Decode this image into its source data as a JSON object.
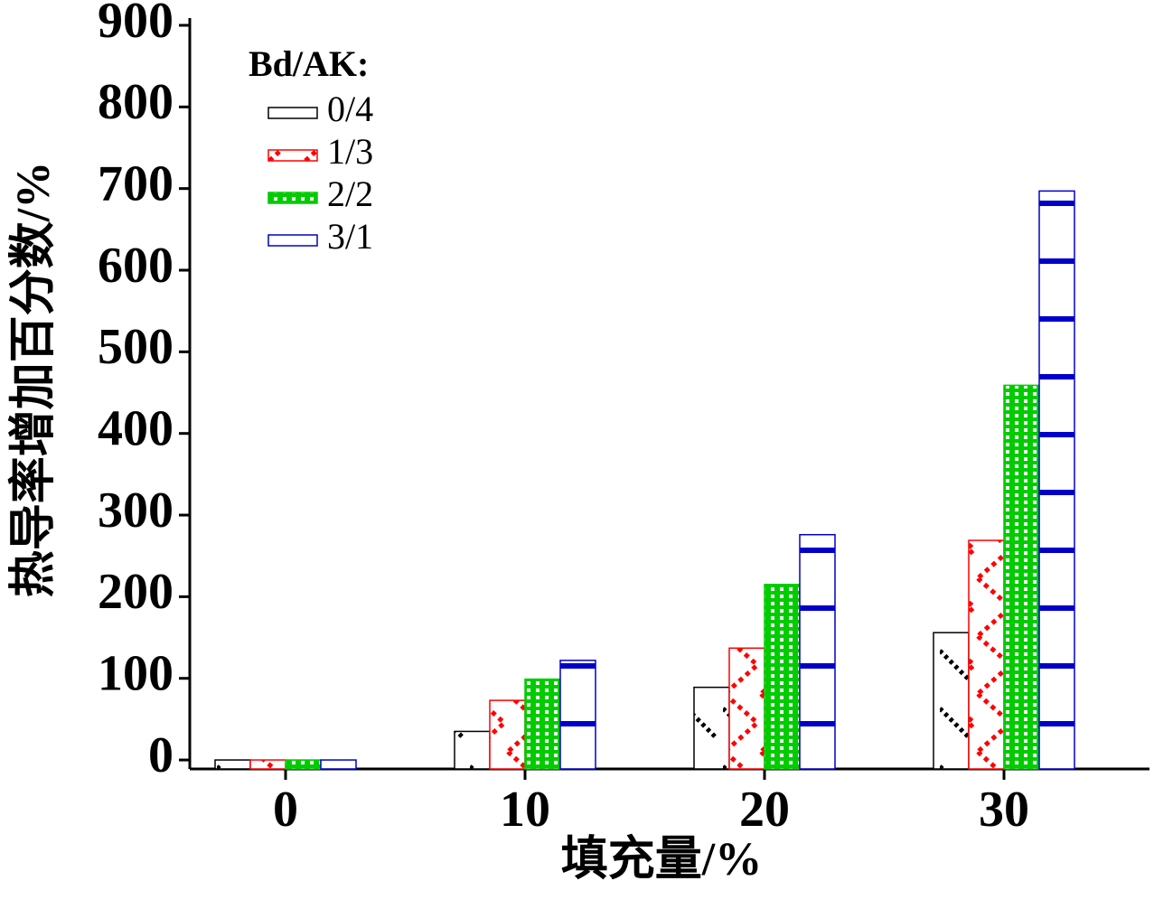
{
  "chart_data": {
    "type": "bar",
    "y_label": "热导率增加百分数/%",
    "x_label": "填充量/%",
    "legend_title": "Bd/AK:",
    "legend": "top-left",
    "categories": [
      "0",
      "10",
      "20",
      "30"
    ],
    "series": [
      {
        "name": "0/4",
        "color": "#000000",
        "values": [
          0,
          35,
          89,
          156
        ]
      },
      {
        "name": "1/3",
        "color": "#ff0000",
        "values": [
          0,
          73,
          137,
          269
        ]
      },
      {
        "name": "2/2",
        "color": "#00cc00",
        "values": [
          0,
          99,
          215,
          459
        ]
      },
      {
        "name": "3/1",
        "color": "#0000cc",
        "values": [
          0,
          122,
          276,
          697
        ]
      }
    ],
    "ylim": [
      -11,
      900
    ],
    "yticks": [
      0,
      100,
      200,
      300,
      400,
      500,
      600,
      700,
      800,
      900
    ]
  }
}
